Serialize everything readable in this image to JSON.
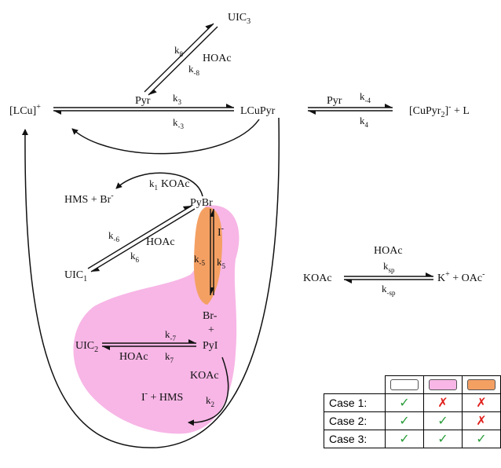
{
  "species": {
    "lcu": "[LCu]",
    "lcu_sup": "+",
    "lcupyr": "LCuPyr",
    "cupyr2_a": "[CuPyr",
    "cupyr2_sub": "2",
    "cupyr2_b": "]",
    "cupyr2_sup": "-",
    "cupyr2_c": " + L",
    "uic3": "UIC",
    "uic3_sub": "3",
    "pyr_top": "Pyr",
    "pyr_right": "Pyr",
    "hoac_top": "HOAc",
    "hms_br": "HMS + Br",
    "hms_br_sup": "-",
    "koac_top": "KOAc",
    "pybr": "PyBr",
    "iodide": "I",
    "iodide_sup": "-",
    "hoac_mid": "HOAc",
    "uic1": "UIC",
    "uic1_sub": "1",
    "br_minus": "Br-",
    "plus": "+",
    "pyi": "PyI",
    "uic2": "UIC",
    "uic2_sub": "2",
    "hoac_low": "HOAc",
    "koac_low": "KOAc",
    "i_hms": "I",
    "i_hms_sup": "-",
    "i_hms_rest": " + HMS",
    "hoac_right": "HOAc",
    "koac_right": "KOAc",
    "kplus": "K",
    "kplus_sup": "+",
    "oac": " + OAc",
    "oac_sup": "-"
  },
  "rates": {
    "k8": {
      "base": "k",
      "sub": "8"
    },
    "km8": {
      "base": "k",
      "sub": "-8"
    },
    "k3": {
      "base": "k",
      "sub": "3"
    },
    "km3": {
      "base": "k",
      "sub": "-3"
    },
    "km4": {
      "base": "k",
      "sub": "-4"
    },
    "k4": {
      "base": "k",
      "sub": "4"
    },
    "k1": {
      "base": "k",
      "sub": "1"
    },
    "km6": {
      "base": "k",
      "sub": "-6"
    },
    "k6": {
      "base": "k",
      "sub": "6"
    },
    "km5": {
      "base": "k",
      "sub": "-5"
    },
    "k5": {
      "base": "k",
      "sub": "5"
    },
    "km7": {
      "base": "k",
      "sub": "-7"
    },
    "k7": {
      "base": "k",
      "sub": "7"
    },
    "k2": {
      "base": "k",
      "sub": "2"
    },
    "ksp": {
      "base": "k",
      "sub": "sp"
    },
    "kmsp": {
      "base": "k",
      "sub": "-sp"
    }
  },
  "colors": {
    "white_region": "#ffffff",
    "pink_region": "#f7b6e6",
    "orange_region": "#f4a063",
    "check": "#2a9d3a",
    "cross": "#e0201c"
  },
  "legend": {
    "rows": [
      {
        "label": "Case 1:",
        "marks": [
          "✓",
          "✗",
          "✗"
        ]
      },
      {
        "label": "Case 2:",
        "marks": [
          "✓",
          "✓",
          "✗"
        ]
      },
      {
        "label": "Case 3:",
        "marks": [
          "✓",
          "✓",
          "✓"
        ]
      }
    ]
  }
}
